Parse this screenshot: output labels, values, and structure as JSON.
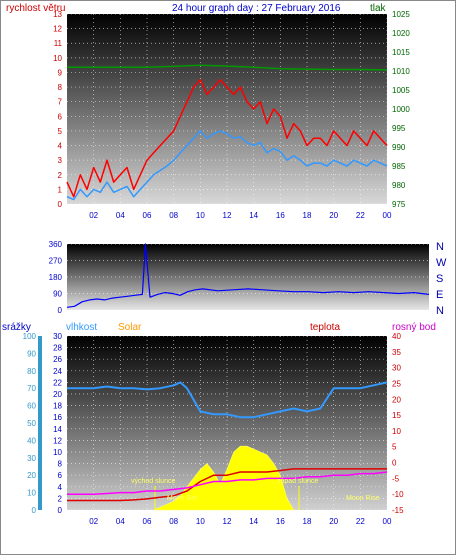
{
  "header": {
    "wind_label": "rychlost větru",
    "title": "24 hour graph day : 27 February 2016",
    "pressure_label": "tlak"
  },
  "direction_letters": [
    "N",
    "W",
    "S",
    "E",
    "N"
  ],
  "bottom_labels": {
    "rain": "srážky",
    "humidity": "vlhkost",
    "solar": "Solar",
    "temperature": "teplota",
    "dewpoint": "rosný bod",
    "sunrise": "východ slunce",
    "sunset": "západ slunce",
    "moonset": "Moon Set",
    "moonrise": "Moon Rise"
  },
  "colors": {
    "wind_axis": "#cc0000",
    "pressure_axis": "#006600",
    "title": "#0000cc",
    "gust": "#ff0000",
    "wind_avg": "#3399ff",
    "pressure_line": "#009900",
    "direction": "#0000ff",
    "humidity": "#3399ff",
    "solar": "#ffff00",
    "solar_label": "#ff9900",
    "temperature": "#dd0000",
    "dewpoint": "#ff00ff",
    "rain_axis": "#3399cc",
    "vline": "#ffff00"
  },
  "chart_data": [
    {
      "type": "line",
      "name": "wind-and-pressure",
      "x_ticks": [
        "02",
        "04",
        "06",
        "08",
        "10",
        "12",
        "14",
        "16",
        "18",
        "20",
        "22",
        "00"
      ],
      "left_axis": {
        "title": "rychlost větru",
        "ticks": [
          0,
          1,
          2,
          3,
          4,
          5,
          6,
          7,
          8,
          9,
          10,
          11,
          12,
          13
        ],
        "range": [
          0,
          13
        ]
      },
      "right_axis": {
        "title": "tlak",
        "ticks": [
          975,
          980,
          985,
          990,
          995,
          1000,
          1005,
          1010,
          1015,
          1020,
          1025
        ],
        "range": [
          975,
          1025
        ]
      },
      "x_range": [
        0,
        24
      ],
      "series": [
        {
          "name": "gust",
          "x": [
            0,
            0.5,
            1,
            1.5,
            2,
            2.5,
            3,
            3.5,
            4,
            4.5,
            5,
            5.5,
            6,
            6.5,
            7,
            7.5,
            8,
            8.5,
            9,
            9.5,
            10,
            10.5,
            11,
            11.5,
            12,
            12.5,
            13,
            13.5,
            14,
            14.5,
            15,
            15.5,
            16,
            16.5,
            17,
            17.5,
            18,
            18.5,
            19,
            19.5,
            20,
            20.5,
            21,
            21.5,
            22,
            22.5,
            23,
            23.5,
            24
          ],
          "values": [
            1.5,
            0.5,
            2,
            1,
            2.5,
            1.5,
            3,
            1.5,
            2,
            2.5,
            1,
            2,
            3,
            3.5,
            4,
            4.5,
            5,
            6,
            7,
            8,
            8.5,
            7.5,
            8,
            8.5,
            8,
            7.5,
            8,
            7,
            6.5,
            7,
            5.5,
            6.5,
            6,
            4.5,
            5.5,
            5,
            4,
            4.5,
            4.5,
            4,
            5,
            4.5,
            4,
            5,
            4.5,
            4,
            5,
            4.5,
            4
          ]
        },
        {
          "name": "average",
          "x": [
            0,
            0.5,
            1,
            1.5,
            2,
            2.5,
            3,
            3.5,
            4,
            4.5,
            5,
            5.5,
            6,
            6.5,
            7,
            7.5,
            8,
            8.5,
            9,
            9.5,
            10,
            10.5,
            11,
            11.5,
            12,
            12.5,
            13,
            13.5,
            14,
            14.5,
            15,
            15.5,
            16,
            16.5,
            17,
            17.5,
            18,
            18.5,
            19,
            19.5,
            20,
            20.5,
            21,
            21.5,
            22,
            22.5,
            23,
            23.5,
            24
          ],
          "values": [
            0.5,
            0.3,
            1,
            0.5,
            1,
            0.8,
            1.5,
            0.8,
            1,
            1.2,
            0.5,
            1,
            1.5,
            2,
            2.3,
            2.6,
            3,
            3.5,
            4,
            4.5,
            5,
            4.5,
            4.8,
            5,
            4.8,
            4.5,
            4.6,
            4.2,
            4,
            4.2,
            3.5,
            3.8,
            3.6,
            3,
            3.3,
            3,
            2.6,
            2.8,
            2.8,
            2.6,
            3,
            2.8,
            2.6,
            3,
            2.8,
            2.6,
            3,
            2.8,
            2.6
          ]
        },
        {
          "name": "pressure",
          "axis": "right",
          "x": [
            0,
            2,
            4,
            6,
            8,
            10,
            12,
            14,
            16,
            18,
            20,
            22,
            24
          ],
          "values": [
            1011,
            1011,
            1011,
            1011,
            1011.2,
            1011.5,
            1011.3,
            1011,
            1010.6,
            1010.5,
            1010.4,
            1010.4,
            1010.3
          ]
        }
      ]
    },
    {
      "type": "line",
      "name": "wind-direction",
      "left_axis": {
        "ticks": [
          0,
          90,
          180,
          270,
          360
        ],
        "range": [
          0,
          360
        ]
      },
      "x_range": [
        0,
        24
      ],
      "series": [
        {
          "name": "direction",
          "x": [
            0,
            0.5,
            1,
            1.5,
            2,
            2.5,
            3,
            3.5,
            4,
            4.5,
            5,
            5.2,
            5.5,
            6,
            6.5,
            7,
            7.5,
            8,
            8.5,
            9,
            10,
            11,
            12,
            13,
            14,
            15,
            16,
            17,
            18,
            19,
            20,
            21,
            22,
            23,
            24
          ],
          "values": [
            15,
            20,
            45,
            55,
            60,
            55,
            65,
            70,
            75,
            80,
            85,
            360,
            70,
            85,
            95,
            90,
            80,
            100,
            110,
            115,
            105,
            110,
            115,
            110,
            105,
            100,
            100,
            95,
            100,
            95,
            100,
            95,
            90,
            95,
            85
          ]
        }
      ]
    },
    {
      "type": "line",
      "name": "temperature-humidity-solar-rain",
      "rain_axis": {
        "title": "srážky",
        "ticks": [
          0,
          10,
          20,
          30,
          40,
          50,
          60,
          70,
          80,
          90,
          100
        ],
        "range": [
          0,
          100
        ]
      },
      "humidity_axis": {
        "title": "vlhkost",
        "ticks": [
          0,
          2,
          4,
          6,
          8,
          10,
          12,
          14,
          16,
          18,
          20,
          22,
          24,
          26,
          28,
          30
        ],
        "range": [
          0,
          30
        ]
      },
      "temperature_axis": {
        "title": "teplota",
        "ticks": [
          -15,
          -10,
          -5,
          0,
          5,
          10,
          15,
          20,
          25,
          30,
          35,
          40
        ],
        "range": [
          -15,
          40
        ]
      },
      "x_range": [
        0,
        24
      ],
      "vlines": [
        6.6,
        17.4
      ],
      "series": [
        {
          "name": "humidity",
          "axis": "humidity",
          "x": [
            0,
            1,
            2,
            3,
            4,
            5,
            6,
            7,
            8,
            8.5,
            9,
            10,
            11,
            12,
            13,
            14,
            15,
            16,
            17,
            18,
            19,
            20,
            21,
            22,
            23,
            24
          ],
          "values": [
            21,
            21,
            21,
            21.3,
            21,
            21,
            20.8,
            21,
            21.5,
            22,
            21,
            17,
            16.5,
            16.5,
            16,
            16,
            16.5,
            17,
            17.5,
            17,
            17.5,
            21,
            21,
            21,
            21.5,
            22
          ]
        },
        {
          "name": "temperature",
          "axis": "temperature",
          "x": [
            0,
            1,
            2,
            3,
            4,
            5,
            6,
            7,
            8,
            9,
            10,
            11,
            12,
            13,
            14,
            15,
            16,
            17,
            18,
            19,
            20,
            21,
            22,
            23,
            24
          ],
          "values": [
            -12,
            -12,
            -12,
            -12,
            -12,
            -11.8,
            -11.5,
            -11,
            -10.5,
            -9,
            -6,
            -4,
            -4,
            -3,
            -3,
            -3,
            -2.5,
            -2,
            -2,
            -2,
            -2,
            -2,
            -2,
            -2,
            -2
          ]
        },
        {
          "name": "dewpoint",
          "axis": "temperature",
          "x": [
            0,
            1,
            2,
            3,
            4,
            5,
            6,
            7,
            8,
            9,
            10,
            11,
            12,
            13,
            14,
            15,
            16,
            17,
            18,
            19,
            20,
            21,
            22,
            23,
            24
          ],
          "values": [
            -10,
            -10,
            -10,
            -9.8,
            -9.5,
            -9.5,
            -9,
            -9,
            -8.5,
            -8,
            -7,
            -6,
            -6,
            -5.5,
            -5.5,
            -5,
            -5,
            -5,
            -4.5,
            -4.5,
            -4,
            -4,
            -3.5,
            -3.5,
            -3
          ]
        },
        {
          "name": "solar",
          "axis": "humidity",
          "x": [
            6.5,
            7,
            8,
            8.5,
            9,
            9.5,
            10,
            10.5,
            11,
            11.5,
            12,
            12.5,
            13,
            13.5,
            14,
            14.5,
            15,
            15.5,
            16,
            16.5,
            17
          ],
          "values": [
            0,
            0.5,
            1.5,
            2.5,
            4,
            5.5,
            7,
            8,
            6.5,
            4.5,
            7,
            10,
            11,
            11,
            10.5,
            10,
            9.5,
            8,
            6,
            2,
            0
          ]
        }
      ]
    }
  ]
}
